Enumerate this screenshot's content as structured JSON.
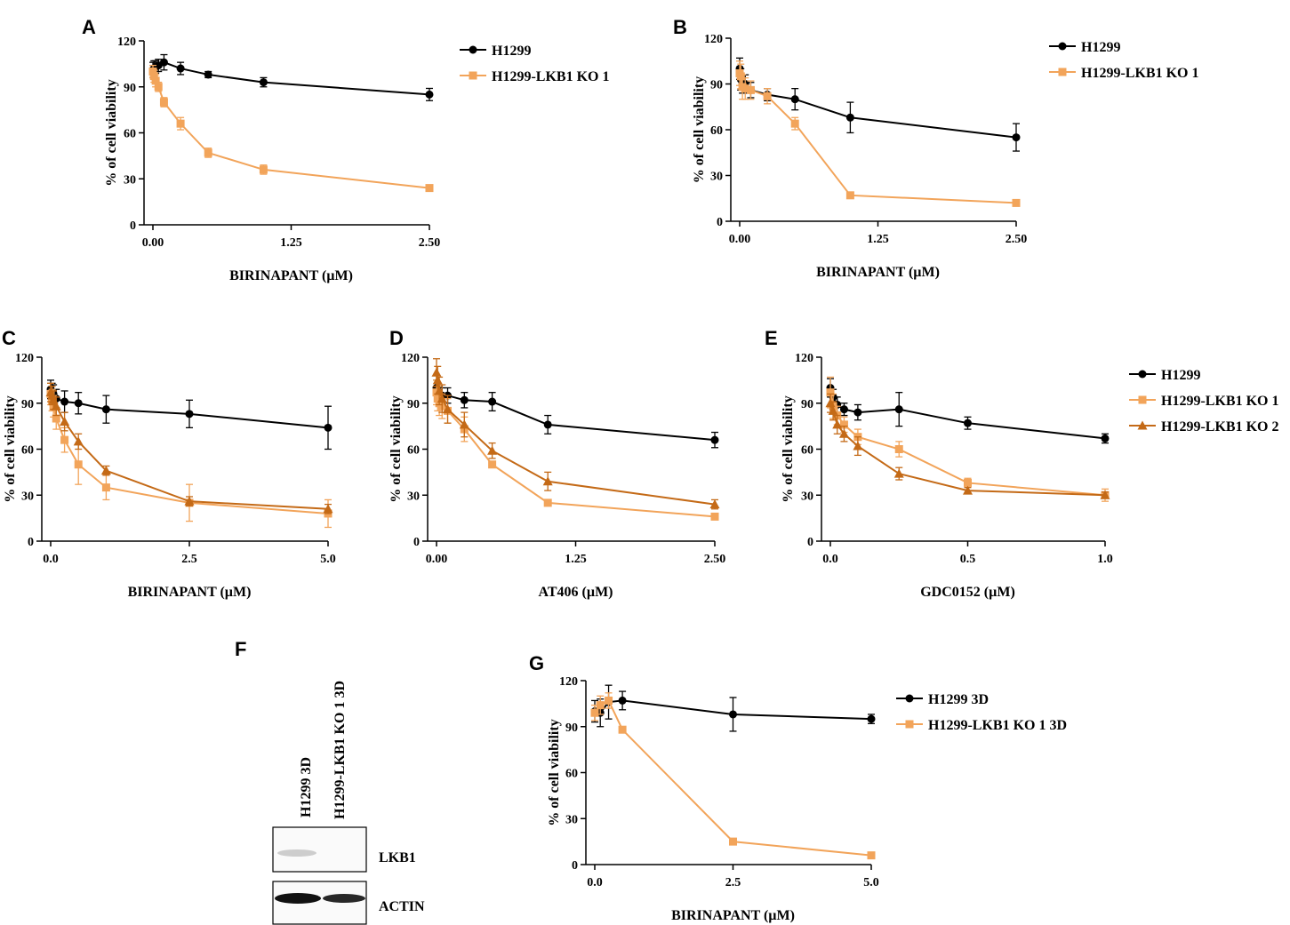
{
  "colors": {
    "H1299": "#000000",
    "KO1": "#F2A45A",
    "KO2": "#C46A17"
  },
  "chart_data": [
    {
      "id": "A",
      "panel_label": "A",
      "type": "line",
      "xlabel": "BIRINAPANT (µM)",
      "ylabel": "% of cell viability",
      "xlim": [
        0,
        2.5
      ],
      "ylim": [
        0,
        120
      ],
      "xticks": [
        0,
        1.25,
        2.5
      ],
      "xtick_labels": [
        "0.00",
        "1.25",
        "2.50"
      ],
      "yticks": [
        0,
        30,
        60,
        90,
        120
      ],
      "ytick_labels": [
        "0",
        "30",
        "60",
        "90",
        "120"
      ],
      "legend": "right",
      "series": [
        {
          "name": "H1299",
          "color": "#000000",
          "marker": "circle",
          "x": [
            0,
            0.01,
            0.025,
            0.05,
            0.1,
            0.25,
            0.5,
            1.0,
            2.5
          ],
          "y": [
            101,
            102,
            103,
            104,
            106,
            102,
            98,
            93,
            85
          ],
          "err": [
            5,
            5,
            4,
            4,
            5,
            4,
            2,
            3,
            4
          ]
        },
        {
          "name": "H1299-LKB1 KO 1",
          "color": "#F2A45A",
          "marker": "square",
          "x": [
            0,
            0.01,
            0.025,
            0.05,
            0.1,
            0.25,
            0.5,
            1.0,
            2.5
          ],
          "y": [
            100,
            97,
            94,
            90,
            80,
            66,
            47,
            36,
            24
          ],
          "err": [
            4,
            4,
            4,
            3,
            3,
            4,
            3,
            3,
            2
          ]
        }
      ]
    },
    {
      "id": "B",
      "panel_label": "B",
      "type": "line",
      "xlabel": "BIRINAPANT (µM)",
      "ylabel": "% of cell viability",
      "xlim": [
        0,
        2.5
      ],
      "ylim": [
        0,
        120
      ],
      "xticks": [
        0,
        1.25,
        2.5
      ],
      "xtick_labels": [
        "0.00",
        "1.25",
        "2.50"
      ],
      "yticks": [
        0,
        30,
        60,
        90,
        120
      ],
      "ytick_labels": [
        "0",
        "30",
        "60",
        "90",
        "120"
      ],
      "legend": "right",
      "series": [
        {
          "name": "H1299",
          "color": "#000000",
          "marker": "circle",
          "x": [
            0,
            0.01,
            0.025,
            0.05,
            0.1,
            0.25,
            0.5,
            1.0,
            2.5
          ],
          "y": [
            100,
            93,
            90,
            90,
            86,
            83,
            80,
            68,
            55
          ],
          "err": [
            7,
            7,
            6,
            6,
            5,
            4,
            7,
            10,
            9
          ]
        },
        {
          "name": "H1299-LKB1 KO 1",
          "color": "#F2A45A",
          "marker": "square",
          "x": [
            0,
            0.01,
            0.025,
            0.05,
            0.1,
            0.25,
            0.5,
            1.0,
            2.5
          ],
          "y": [
            97,
            95,
            88,
            87,
            86,
            82,
            64,
            17,
            12
          ],
          "err": [
            8,
            8,
            8,
            7,
            6,
            5,
            4,
            2,
            1
          ]
        }
      ]
    },
    {
      "id": "C",
      "panel_label": "C",
      "type": "line",
      "xlabel": "BIRINAPANT (µM)",
      "ylabel": "% of cell viability",
      "xlim": [
        0,
        5
      ],
      "ylim": [
        0,
        120
      ],
      "xticks": [
        0,
        2.5,
        5
      ],
      "xtick_labels": [
        "0.0",
        "2.5",
        "5.0"
      ],
      "yticks": [
        0,
        30,
        60,
        90,
        120
      ],
      "ytick_labels": [
        "0",
        "30",
        "60",
        "90",
        "120"
      ],
      "legend": "none",
      "series": [
        {
          "name": "H1299",
          "color": "#000000",
          "marker": "circle",
          "x": [
            0,
            0.025,
            0.05,
            0.1,
            0.25,
            0.5,
            1.0,
            2.5,
            5.0
          ],
          "y": [
            99,
            97,
            96,
            93,
            91,
            90,
            86,
            83,
            74
          ],
          "err": [
            6,
            6,
            6,
            6,
            7,
            7,
            9,
            9,
            14
          ]
        },
        {
          "name": "H1299-LKB1 KO 1",
          "color": "#F2A45A",
          "marker": "square",
          "x": [
            0,
            0.025,
            0.05,
            0.1,
            0.25,
            0.5,
            1.0,
            2.5,
            5.0
          ],
          "y": [
            96,
            92,
            88,
            80,
            66,
            50,
            35,
            25,
            18
          ],
          "err": [
            7,
            7,
            7,
            7,
            8,
            13,
            8,
            12,
            9
          ]
        },
        {
          "name": "H1299-LKB1 KO 2",
          "color": "#C46A17",
          "marker": "triangle",
          "x": [
            0,
            0.025,
            0.05,
            0.1,
            0.25,
            0.5,
            1.0,
            2.5,
            5.0
          ],
          "y": [
            97,
            95,
            92,
            88,
            78,
            65,
            46,
            26,
            21
          ],
          "err": [
            6,
            6,
            6,
            6,
            6,
            5,
            3,
            3,
            3
          ]
        }
      ]
    },
    {
      "id": "D",
      "panel_label": "D",
      "type": "line",
      "xlabel": "AT406 (µM)",
      "ylabel": "% of cell viability",
      "xlim": [
        0,
        2.5
      ],
      "ylim": [
        0,
        120
      ],
      "xticks": [
        0,
        1.25,
        2.5
      ],
      "xtick_labels": [
        "0.00",
        "1.25",
        "2.50"
      ],
      "yticks": [
        0,
        30,
        60,
        90,
        120
      ],
      "ytick_labels": [
        "0",
        "30",
        "60",
        "90",
        "120"
      ],
      "legend": "none",
      "series": [
        {
          "name": "H1299",
          "color": "#000000",
          "marker": "circle",
          "x": [
            0,
            0.01,
            0.025,
            0.05,
            0.1,
            0.25,
            0.5,
            1.0,
            2.5
          ],
          "y": [
            100,
            98,
            96,
            95,
            95,
            92,
            91,
            76,
            66
          ],
          "err": [
            5,
            5,
            5,
            5,
            5,
            5,
            6,
            6,
            5
          ]
        },
        {
          "name": "H1299-LKB1 KO 1",
          "color": "#F2A45A",
          "marker": "square",
          "x": [
            0,
            0.01,
            0.025,
            0.05,
            0.1,
            0.25,
            0.5,
            1.0,
            2.5
          ],
          "y": [
            97,
            93,
            90,
            88,
            85,
            73,
            50,
            25,
            16
          ],
          "err": [
            8,
            8,
            8,
            8,
            8,
            8,
            2,
            1,
            1
          ]
        },
        {
          "name": "H1299-LKB1 KO 2",
          "color": "#C46A17",
          "marker": "triangle",
          "x": [
            0,
            0.01,
            0.025,
            0.05,
            0.1,
            0.25,
            0.5,
            1.0,
            2.5
          ],
          "y": [
            110,
            105,
            98,
            93,
            86,
            76,
            59,
            39,
            24
          ],
          "err": [
            9,
            9,
            9,
            9,
            9,
            8,
            5,
            6,
            3
          ]
        }
      ]
    },
    {
      "id": "E",
      "panel_label": "E",
      "type": "line",
      "xlabel": "GDC0152 (µM)",
      "ylabel": "% of cell viability",
      "xlim": [
        0,
        1
      ],
      "ylim": [
        0,
        120
      ],
      "xticks": [
        0,
        0.5,
        1
      ],
      "xtick_labels": [
        "0.0",
        "0.5",
        "1.0"
      ],
      "yticks": [
        0,
        30,
        60,
        90,
        120
      ],
      "ytick_labels": [
        "0",
        "30",
        "60",
        "90",
        "120"
      ],
      "legend": "right",
      "series": [
        {
          "name": "H1299",
          "color": "#000000",
          "marker": "circle",
          "x": [
            0,
            0.01,
            0.025,
            0.05,
            0.1,
            0.25,
            0.5,
            1.0
          ],
          "y": [
            100,
            94,
            89,
            86,
            84,
            86,
            77,
            67
          ],
          "err": [
            6,
            5,
            5,
            4,
            5,
            11,
            4,
            3
          ]
        },
        {
          "name": "H1299-LKB1 KO 1",
          "color": "#F2A45A",
          "marker": "square",
          "x": [
            0,
            0.01,
            0.025,
            0.05,
            0.1,
            0.25,
            0.5,
            1.0
          ],
          "y": [
            97,
            88,
            82,
            76,
            68,
            60,
            38,
            30
          ],
          "err": [
            10,
            8,
            6,
            5,
            5,
            5,
            3,
            4
          ]
        },
        {
          "name": "H1299-LKB1 KO 2",
          "color": "#C46A17",
          "marker": "triangle",
          "x": [
            0,
            0.01,
            0.025,
            0.05,
            0.1,
            0.25,
            0.5,
            1.0
          ],
          "y": [
            90,
            85,
            76,
            70,
            62,
            44,
            33,
            30
          ],
          "err": [
            6,
            6,
            6,
            5,
            6,
            4,
            2,
            2
          ]
        }
      ]
    },
    {
      "id": "G",
      "panel_label": "G",
      "type": "line",
      "xlabel": "BIRINAPANT (µM)",
      "ylabel": "% of cell viability",
      "xlim": [
        0,
        5
      ],
      "ylim": [
        0,
        120
      ],
      "xticks": [
        0,
        2.5,
        5
      ],
      "xtick_labels": [
        "0.0",
        "2.5",
        "5.0"
      ],
      "yticks": [
        0,
        30,
        60,
        90,
        120
      ],
      "ytick_labels": [
        "0",
        "30",
        "60",
        "90",
        "120"
      ],
      "legend": "right",
      "series": [
        {
          "name": "H1299 3D",
          "color": "#000000",
          "marker": "circle",
          "x": [
            0,
            0.1,
            0.25,
            0.5,
            2.5,
            5.0
          ],
          "y": [
            100,
            99,
            106,
            107,
            98,
            95
          ],
          "err": [
            7,
            9,
            11,
            6,
            11,
            3
          ]
        },
        {
          "name": "H1299-LKB1 KO 1 3D",
          "color": "#F2A45A",
          "marker": "square",
          "x": [
            0,
            0.1,
            0.25,
            0.5,
            2.5,
            5.0
          ],
          "y": [
            99,
            104,
            107,
            88,
            15,
            6
          ],
          "err": [
            5,
            6,
            5,
            2,
            1,
            1
          ]
        }
      ]
    }
  ],
  "western_blot": {
    "panel_label": "F",
    "lanes": [
      "H1299 3D",
      "H1299-LKB1  KO 1 3D"
    ],
    "rows": [
      {
        "label": "LKB1",
        "intensity": [
          0.35,
          0.0
        ]
      },
      {
        "label": "ACTIN",
        "intensity": [
          1.0,
          0.9
        ]
      }
    ]
  }
}
